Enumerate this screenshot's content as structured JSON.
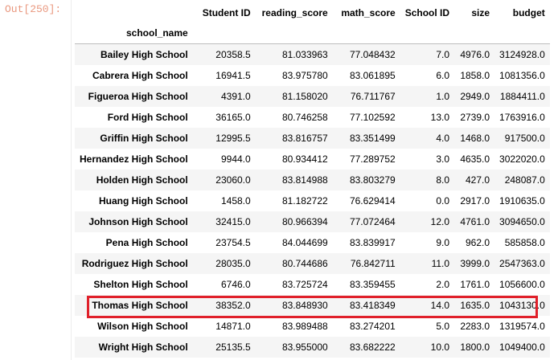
{
  "cell": {
    "prompt": "Out[250]:"
  },
  "table": {
    "index_name": "school_name",
    "columns": [
      "Student ID",
      "reading_score",
      "math_score",
      "School ID",
      "size",
      "budget"
    ],
    "rows": [
      {
        "name": "Bailey High School",
        "values": [
          "20358.5",
          "81.033963",
          "77.048432",
          "7.0",
          "4976.0",
          "3124928.0"
        ]
      },
      {
        "name": "Cabrera High School",
        "values": [
          "16941.5",
          "83.975780",
          "83.061895",
          "6.0",
          "1858.0",
          "1081356.0"
        ]
      },
      {
        "name": "Figueroa High School",
        "values": [
          "4391.0",
          "81.158020",
          "76.711767",
          "1.0",
          "2949.0",
          "1884411.0"
        ]
      },
      {
        "name": "Ford High School",
        "values": [
          "36165.0",
          "80.746258",
          "77.102592",
          "13.0",
          "2739.0",
          "1763916.0"
        ]
      },
      {
        "name": "Griffin High School",
        "values": [
          "12995.5",
          "83.816757",
          "83.351499",
          "4.0",
          "1468.0",
          "917500.0"
        ]
      },
      {
        "name": "Hernandez High School",
        "values": [
          "9944.0",
          "80.934412",
          "77.289752",
          "3.0",
          "4635.0",
          "3022020.0"
        ]
      },
      {
        "name": "Holden High School",
        "values": [
          "23060.0",
          "83.814988",
          "83.803279",
          "8.0",
          "427.0",
          "248087.0"
        ]
      },
      {
        "name": "Huang High School",
        "values": [
          "1458.0",
          "81.182722",
          "76.629414",
          "0.0",
          "2917.0",
          "1910635.0"
        ]
      },
      {
        "name": "Johnson High School",
        "values": [
          "32415.0",
          "80.966394",
          "77.072464",
          "12.0",
          "4761.0",
          "3094650.0"
        ]
      },
      {
        "name": "Pena High School",
        "values": [
          "23754.5",
          "84.044699",
          "83.839917",
          "9.0",
          "962.0",
          "585858.0"
        ]
      },
      {
        "name": "Rodriguez High School",
        "values": [
          "28035.0",
          "80.744686",
          "76.842711",
          "11.0",
          "3999.0",
          "2547363.0"
        ]
      },
      {
        "name": "Shelton High School",
        "values": [
          "6746.0",
          "83.725724",
          "83.359455",
          "2.0",
          "1761.0",
          "1056600.0"
        ]
      },
      {
        "name": "Thomas High School",
        "values": [
          "38352.0",
          "83.848930",
          "83.418349",
          "14.0",
          "1635.0",
          "1043130.0"
        ]
      },
      {
        "name": "Wilson High School",
        "values": [
          "14871.0",
          "83.989488",
          "83.274201",
          "5.0",
          "2283.0",
          "1319574.0"
        ]
      },
      {
        "name": "Wright High School",
        "values": [
          "25135.5",
          "83.955000",
          "83.682222",
          "10.0",
          "1800.0",
          "1049400.0"
        ]
      }
    ],
    "highlighted_row": "Thomas High School",
    "highlight_color": "#e0202a"
  }
}
